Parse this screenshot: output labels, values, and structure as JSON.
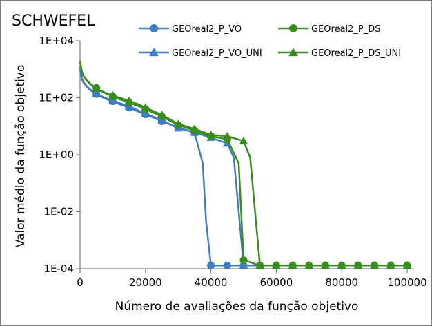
{
  "chart_data": {
    "type": "line",
    "title": "SCHWEFEL",
    "xlabel": "Número de avaliações da função objetivo",
    "ylabel": "Valor médio da função objetivo",
    "xlim": [
      0,
      100000
    ],
    "ylim": [
      0.0001,
      10000
    ],
    "yscale": "log",
    "grid": false,
    "legend_position": "top-right",
    "x_ticks": [
      0,
      20000,
      40000,
      60000,
      80000,
      100000
    ],
    "x_tick_labels": [
      "0",
      "20000",
      "40000",
      "60000",
      "80000",
      "100000"
    ],
    "y_ticks": [
      0.0001,
      0.01,
      1,
      100,
      10000
    ],
    "y_tick_labels": [
      "1E-04",
      "1E-02",
      "1E+00",
      "1E+02",
      "1E+04"
    ],
    "series": [
      {
        "name": "GEOreal2_P_VO",
        "color": "#3c7dc4",
        "marker": "circle",
        "x": [
          0,
          500,
          1000,
          2000,
          3000,
          4000,
          5000,
          6000,
          8000,
          10000,
          12000,
          15000,
          18000,
          20000,
          25000,
          30000,
          35000,
          37500,
          38500,
          40000,
          42000,
          45000,
          50000,
          55000,
          60000,
          65000,
          70000,
          75000,
          80000,
          85000,
          90000,
          95000,
          100000
        ],
        "y": [
          1000,
          480,
          350,
          250,
          190,
          160,
          135,
          115,
          90,
          75,
          60,
          45,
          32,
          26,
          15,
          9,
          6,
          0.5,
          0.005,
          0.00013,
          0.00013,
          0.00013,
          0.00013,
          0.00013,
          0.00013,
          0.00013,
          0.00013,
          0.00013,
          0.00013,
          0.00013,
          0.00013,
          0.00013,
          0.00013
        ]
      },
      {
        "name": "GEOreal2_P_VO_UNI",
        "color": "#3c7dc4",
        "marker": "triangle",
        "x": [
          0,
          500,
          1000,
          2000,
          3000,
          4000,
          5000,
          6000,
          8000,
          10000,
          12000,
          15000,
          18000,
          20000,
          25000,
          30000,
          35000,
          40000,
          45000,
          47000,
          48500,
          50000,
          55000,
          60000,
          65000,
          70000,
          75000,
          80000,
          85000,
          90000,
          95000,
          100000
        ],
        "y": [
          1200,
          500,
          360,
          260,
          200,
          165,
          140,
          120,
          95,
          80,
          65,
          50,
          35,
          28,
          16,
          8.5,
          6,
          4,
          2.5,
          0.8,
          0.01,
          0.00013,
          0.00013,
          0.00013,
          0.00013,
          0.00013,
          0.00013,
          0.00013,
          0.00013,
          0.00013,
          0.00013,
          0.00013
        ]
      },
      {
        "name": "GEOreal2_P_DS",
        "color": "#3a8c1e",
        "marker": "circle",
        "x": [
          0,
          500,
          1000,
          2000,
          3000,
          4000,
          5000,
          6000,
          8000,
          10000,
          12000,
          15000,
          18000,
          20000,
          25000,
          30000,
          35000,
          40000,
          45000,
          48500,
          50000,
          55000,
          60000,
          65000,
          70000,
          75000,
          80000,
          85000,
          90000,
          95000,
          100000
        ],
        "y": [
          2000,
          900,
          600,
          420,
          320,
          260,
          220,
          185,
          140,
          110,
          90,
          68,
          50,
          40,
          22,
          11,
          7,
          4.5,
          3.5,
          0.5,
          0.0002,
          0.00013,
          0.00013,
          0.00013,
          0.00013,
          0.00013,
          0.00013,
          0.00013,
          0.00013,
          0.00013,
          0.00013
        ]
      },
      {
        "name": "GEOreal2_P_DS_UNI",
        "color": "#3a8c1e",
        "marker": "triangle",
        "x": [
          0,
          500,
          1000,
          2000,
          3000,
          4000,
          5000,
          6000,
          8000,
          10000,
          12000,
          15000,
          18000,
          20000,
          25000,
          30000,
          35000,
          40000,
          45000,
          50000,
          52000,
          53500,
          55000,
          60000,
          65000,
          70000,
          75000,
          80000,
          85000,
          90000,
          95000,
          100000
        ],
        "y": [
          1800,
          850,
          580,
          400,
          310,
          250,
          210,
          180,
          145,
          120,
          100,
          78,
          58,
          45,
          25,
          12,
          8,
          5,
          4.5,
          3,
          0.8,
          0.01,
          0.00013,
          0.00013,
          0.00013,
          0.00013,
          0.00013,
          0.00013,
          0.00013,
          0.00013,
          0.00013,
          0.00013
        ]
      }
    ]
  }
}
